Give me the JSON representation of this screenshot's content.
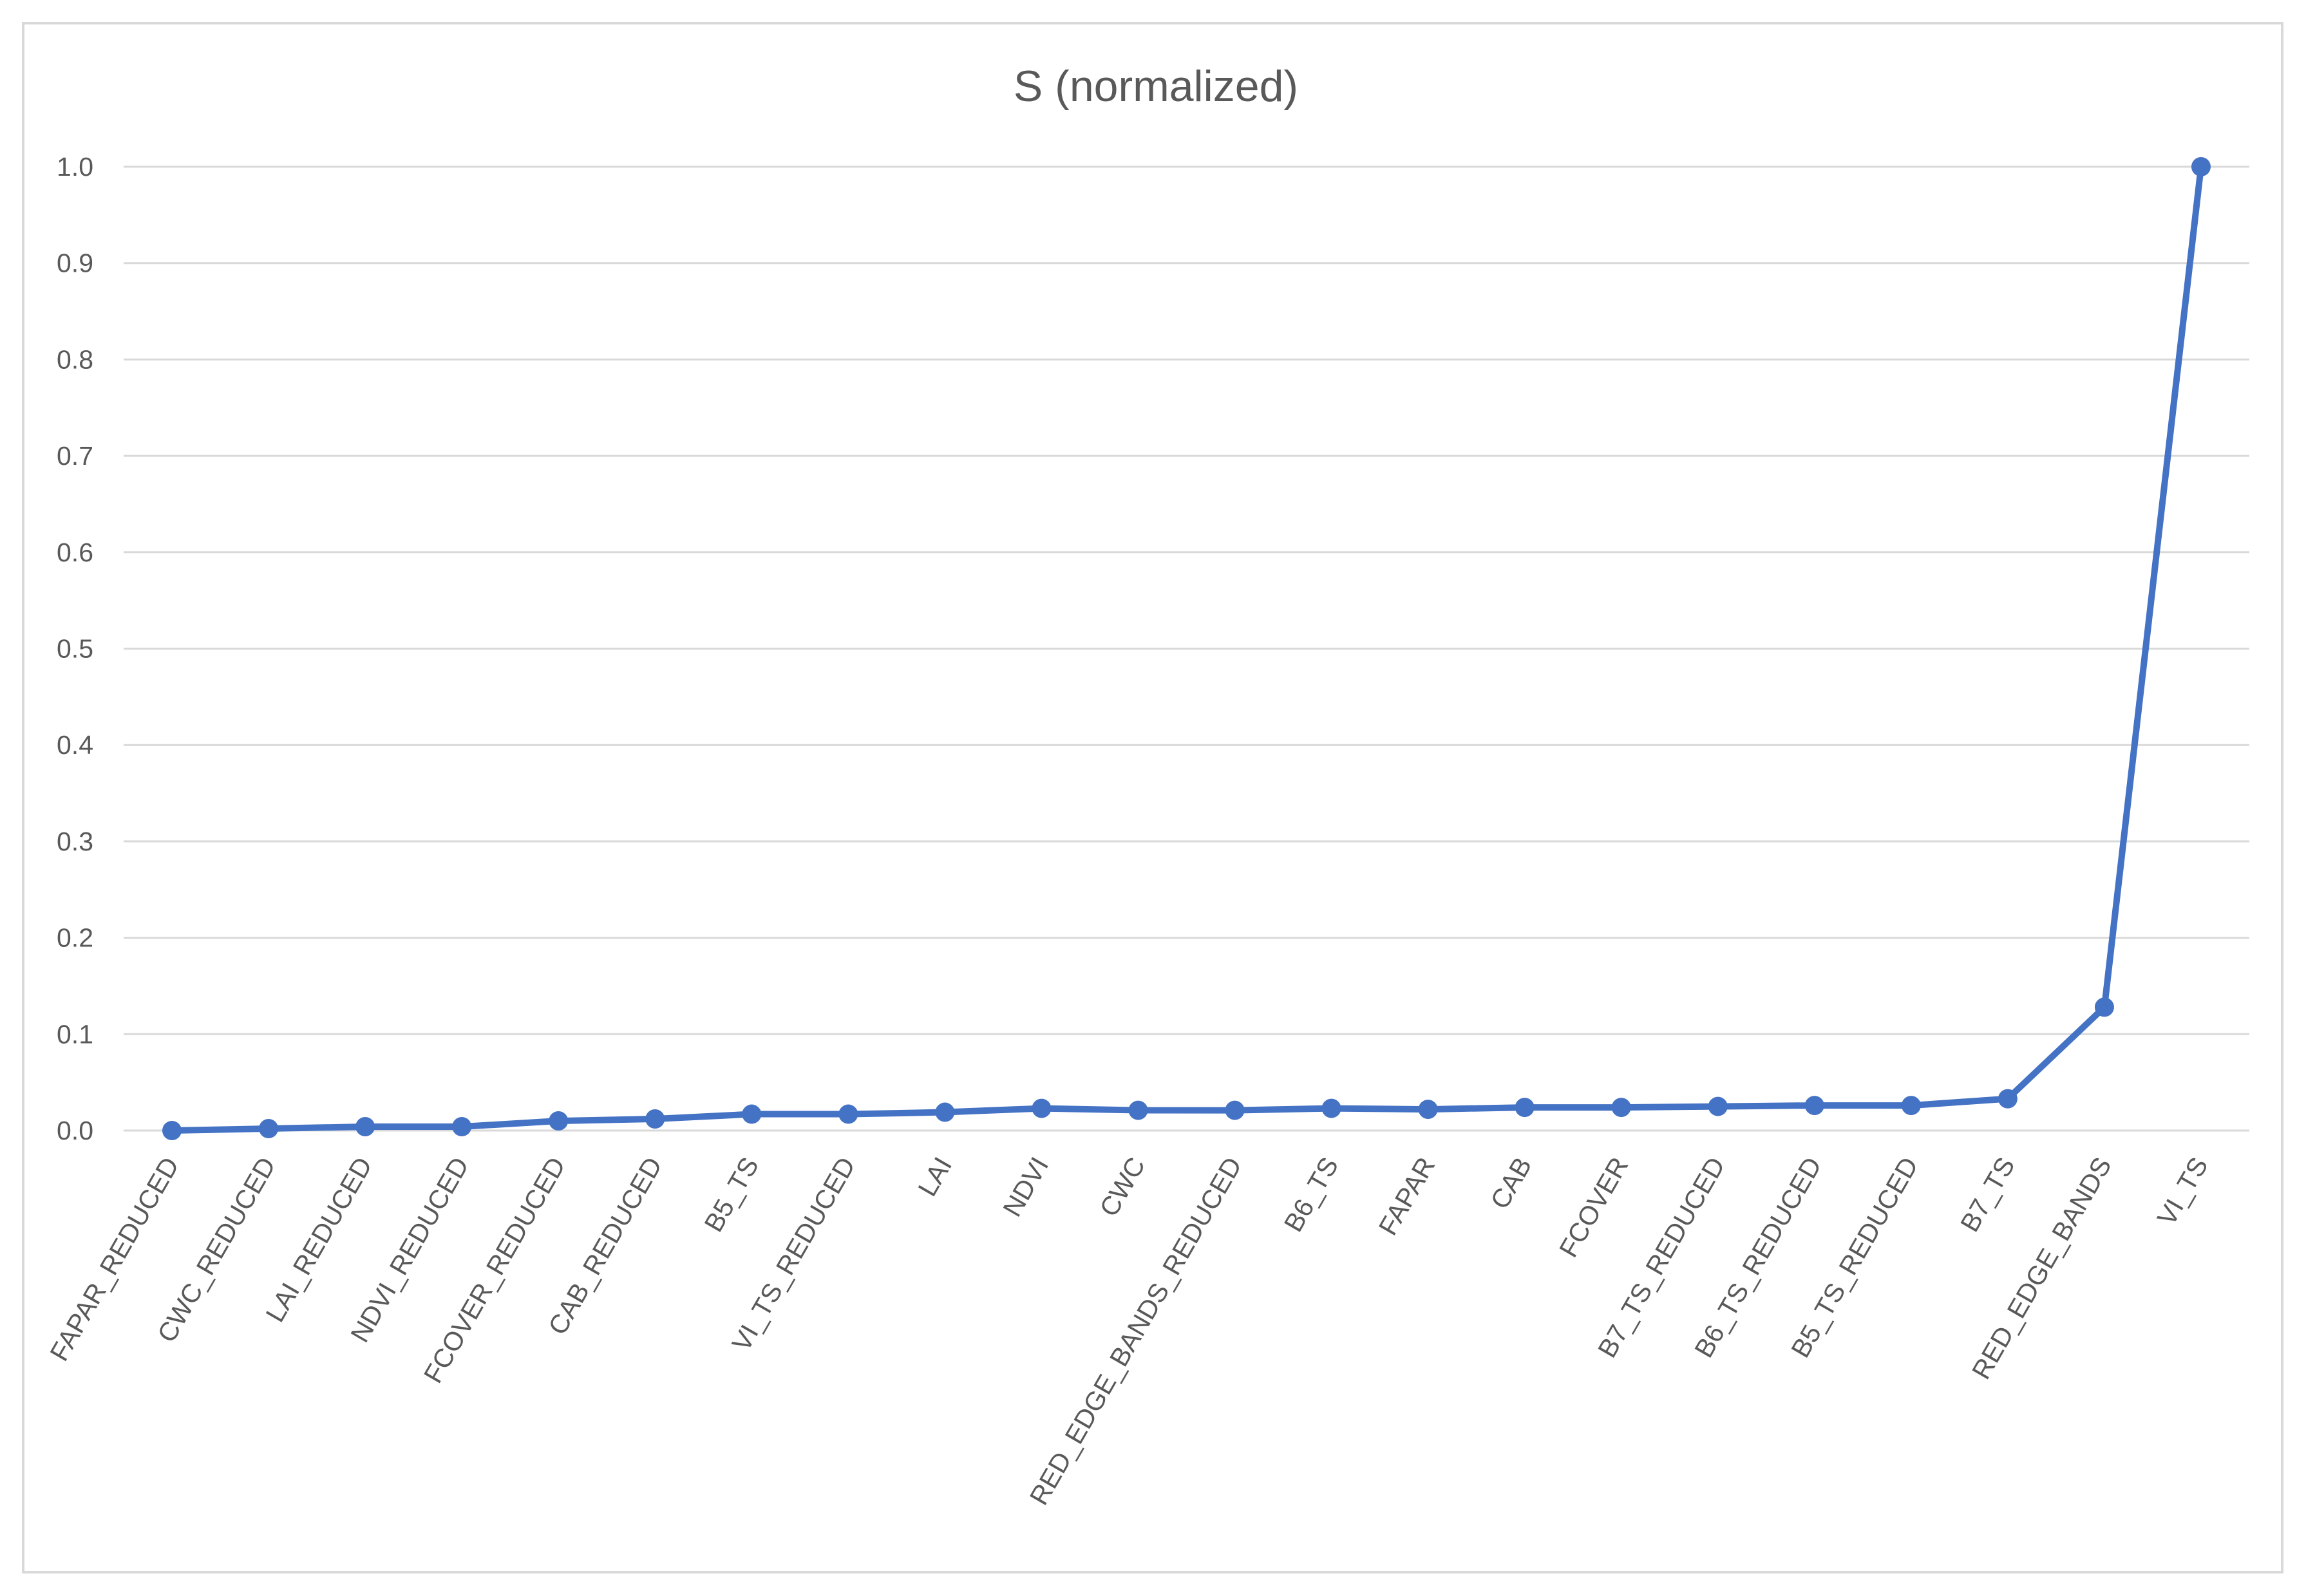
{
  "chart_data": {
    "type": "line",
    "title": "S (normalized)",
    "xlabel": "",
    "ylabel": "",
    "ylim": [
      0,
      1.0
    ],
    "yticks": [
      "0.0",
      "0.1",
      "0.2",
      "0.3",
      "0.4",
      "0.5",
      "0.6",
      "0.7",
      "0.8",
      "0.9",
      "1.0"
    ],
    "grid": true,
    "legend": "none",
    "categories": [
      "FAPAR_REDUCED",
      "CWC_REDUCED",
      "LAI_REDUCED",
      "NDVI_REDUCED",
      "FCOVER_REDUCED",
      "CAB_REDUCED",
      "B5_TS",
      "VI_TS_REDUCED",
      "LAI",
      "NDVI",
      "CWC",
      "RED_EDGE_BANDS_REDUCED",
      "B6_TS",
      "FAPAR",
      "CAB",
      "FCOVER",
      "B7_TS_REDUCED",
      "B6_TS_REDUCED",
      "B5_TS_REDUCED",
      "B7_TS",
      "RED_EDGE_BANDS",
      "VI_TS"
    ],
    "series": [
      {
        "color": "#4472c4",
        "values": [
          0.0,
          0.002,
          0.004,
          0.004,
          0.01,
          0.012,
          0.017,
          0.017,
          0.019,
          0.023,
          0.021,
          0.021,
          0.023,
          0.022,
          0.024,
          0.024,
          0.025,
          0.026,
          0.026,
          0.033,
          0.128,
          1.0
        ]
      }
    ]
  }
}
